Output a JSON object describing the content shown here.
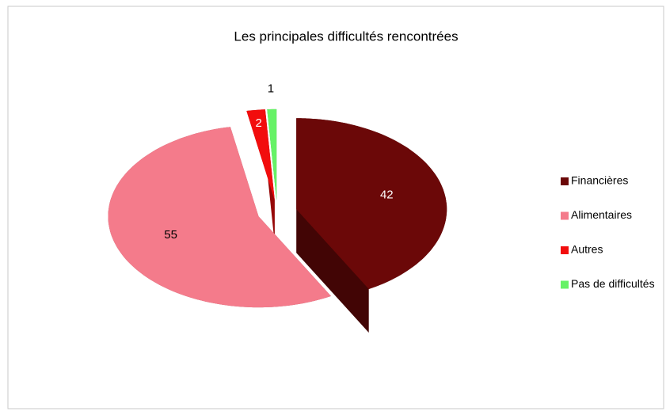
{
  "chart_data": {
    "type": "pie",
    "title": "Les principales difficultés rencontrées",
    "categories": [
      "Financières",
      "Alimentaires",
      "Autres",
      "Pas de difficultés"
    ],
    "values": [
      42,
      55,
      2,
      1
    ],
    "colors": [
      "#6b0808",
      "#f47b8b",
      "#f20d0d",
      "#66f266"
    ],
    "legend": "right"
  }
}
